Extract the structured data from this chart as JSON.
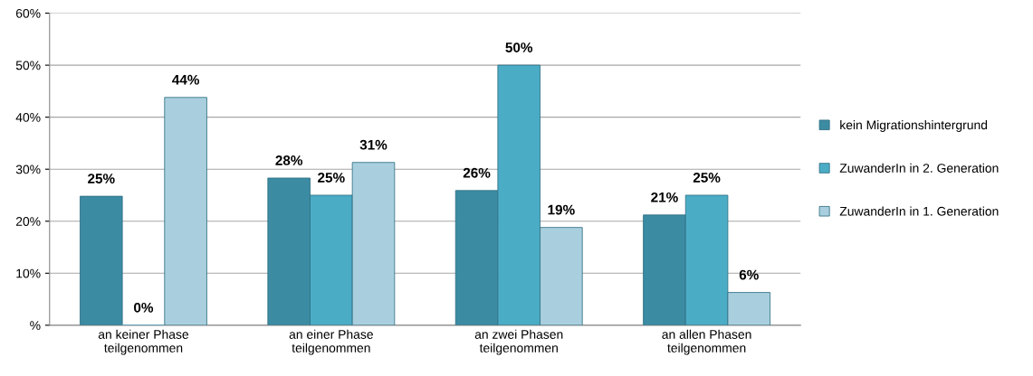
{
  "chart_data": {
    "type": "bar",
    "categories": [
      "an keiner Phase\nteilgenommen",
      "an einer Phase\nteilgenommen",
      "an zwei Phasen\nteilgenommen",
      "an allen Phasen\nteilgenommen"
    ],
    "series": [
      {
        "name": "kein Migrationshintergrund",
        "color": "#3b8ba3",
        "values": [
          24.8,
          28.3,
          25.9,
          21.2
        ],
        "value_labels": [
          "25%",
          "28%",
          "26%",
          "21%"
        ]
      },
      {
        "name": "ZuwanderIn in 2. Generation",
        "color": "#4bacc6",
        "values": [
          0,
          25,
          50,
          25
        ],
        "value_labels": [
          "0%",
          "25%",
          "50%",
          "25%"
        ]
      },
      {
        "name": "ZuwanderIn in 1. Generation",
        "color": "#a9cfdf",
        "values": [
          43.8,
          31.3,
          18.8,
          6.3
        ],
        "value_labels": [
          "44%",
          "31%",
          "19%",
          "6%"
        ]
      }
    ],
    "ylim": [
      0,
      60
    ],
    "yticks": [
      {
        "value": 0,
        "label": "%"
      },
      {
        "value": 10,
        "label": "10%"
      },
      {
        "value": 20,
        "label": "20%"
      },
      {
        "value": 30,
        "label": "30%"
      },
      {
        "value": 40,
        "label": "40%"
      },
      {
        "value": 50,
        "label": "50%"
      },
      {
        "value": 60,
        "label": "60%"
      }
    ],
    "grid": "y",
    "legend": "right"
  }
}
